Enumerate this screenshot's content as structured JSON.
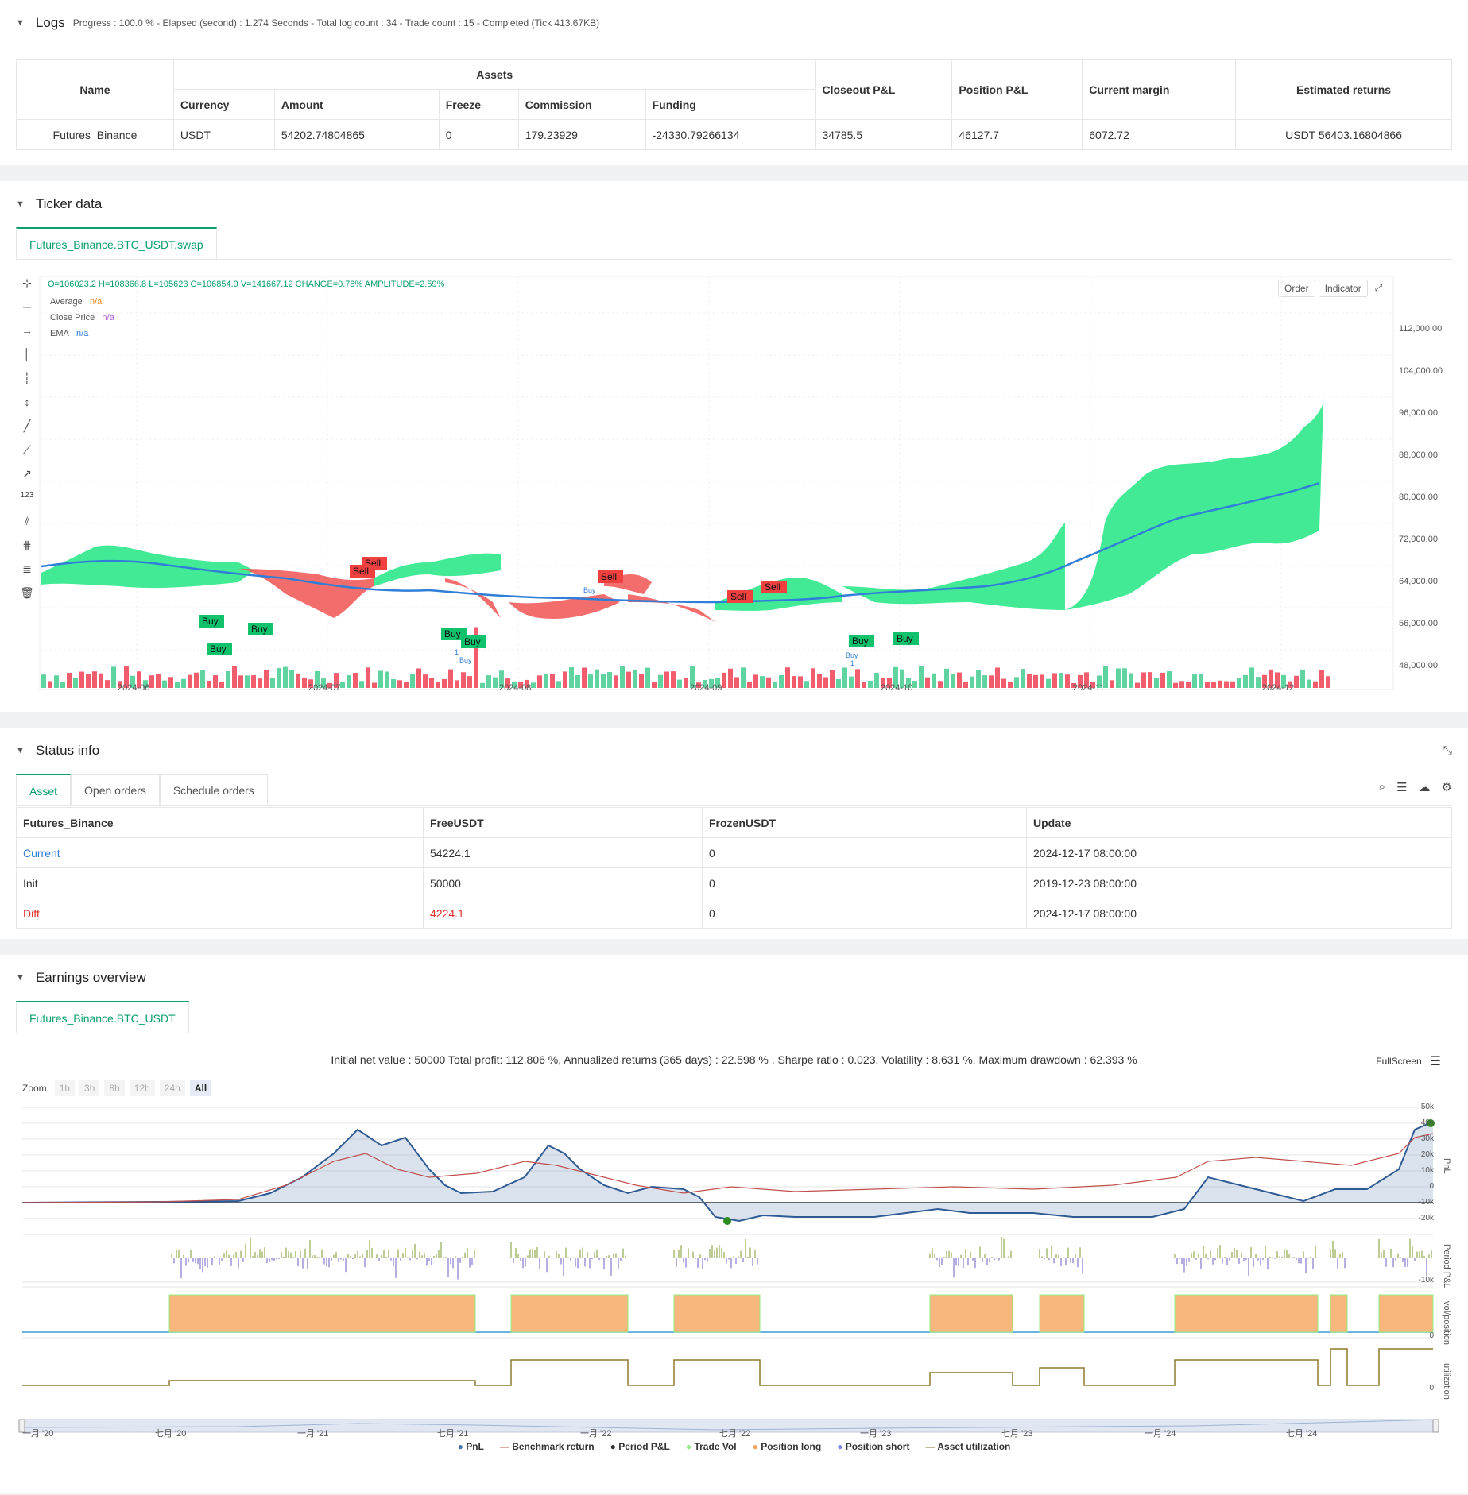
{
  "logs": {
    "title": "Logs",
    "meta": "Progress : 100.0 % - Elapsed (second) : 1.274  Seconds - Total log count : 34 - Trade count : 15 - Completed (Tick 413.67KB)",
    "table": {
      "name_header": "Name",
      "assets_header": "Assets",
      "sub_headers": [
        "Currency",
        "Amount",
        "Freeze",
        "Commission",
        "Funding"
      ],
      "right_headers": [
        "Closeout P&L",
        "Position P&L",
        "Current margin",
        "Estimated returns"
      ],
      "row": [
        "Futures_Binance",
        "USDT",
        "54202.74804865",
        "0",
        "179.23929",
        "-24330.79266134",
        "34785.5",
        "46127.7",
        "6072.72",
        "USDT 56403.16804866"
      ]
    }
  },
  "ticker": {
    "title": "Ticker data",
    "tab": "Futures_Binance.BTC_USDT.swap",
    "ohlc": "O=106023.2 H=108366.8 L=105623 C=106854.9 V=141667.12 CHANGE=0.78% AMPLITUDE=2.59%",
    "legend": [
      {
        "name": "Average",
        "value": "n/a",
        "color": "#f08a24"
      },
      {
        "name": "Close Price",
        "value": "n/a",
        "color": "#b05fd6"
      },
      {
        "name": "EMA",
        "value": "n/a",
        "color": "#2f7ed8"
      }
    ],
    "buttons": [
      "Order",
      "Indicator"
    ],
    "y_ticks": [
      "112,000.00",
      "104,000.00",
      "96,000.00",
      "88,000.00",
      "80,000.00",
      "72,000.00",
      "64,000.00",
      "56,000.00",
      "48,000.00"
    ],
    "x_ticks": [
      "2024-06",
      "2024-07",
      "2024-08",
      "2024-09",
      "2024-10",
      "2024-11",
      "2024-12"
    ],
    "signals": [
      "Sell",
      "Sell",
      "Sell",
      "Sell",
      "Sell",
      "Buy",
      "Buy",
      "Buy",
      "Buy",
      "Buy",
      "Buy",
      "Buy"
    ],
    "small_labels": [
      "Buy",
      "1",
      "Buy",
      "1",
      "Buy"
    ]
  },
  "status": {
    "title": "Status info",
    "tabs": [
      "Asset",
      "Open orders",
      "Schedule orders"
    ],
    "headers": [
      "Futures_Binance",
      "FreeUSDT",
      "FrozenUSDT",
      "Update"
    ],
    "rows": [
      [
        "Current",
        "54224.1",
        "0",
        "2024-12-17 08:00:00"
      ],
      [
        "Init",
        "50000",
        "0",
        "2019-12-23 08:00:00"
      ],
      [
        "Diff",
        "4224.1",
        "0",
        "2024-12-17 08:00:00"
      ]
    ]
  },
  "earnings": {
    "title": "Earnings overview",
    "tab": "Futures_Binance.BTC_USDT",
    "summary": "Initial net value : 50000 Total profit: 112.806 %, Annualized returns (365 days) : 22.598 % , Sharpe ratio : 0.023, Volatility : 8.631 %, Maximum drawdown : 62.393 %",
    "fullscreen": "FullScreen",
    "zoom_label": "Zoom",
    "zoom_options": [
      "1h",
      "3h",
      "8h",
      "12h",
      "24h",
      "All"
    ],
    "pnl_ticks": [
      "50k",
      "40k",
      "30k",
      "20k",
      "10k",
      "0",
      "-10k",
      "-20k"
    ],
    "axis_labels": [
      "PnL",
      "Period P&L",
      "vol/position",
      "utilization"
    ],
    "period_tick": "-10k",
    "vol_tick": "0",
    "util_tick": "0",
    "x_ticks": [
      "一月 '20",
      "七月 '20",
      "一月 '21",
      "七月 '21",
      "一月 '22",
      "七月 '22",
      "一月 '23",
      "七月 '23",
      "一月 '24",
      "七月 '24"
    ],
    "legend": [
      {
        "name": "PnL",
        "color": "#4572a7"
      },
      {
        "name": "Benchmark return",
        "color": "#c0504d"
      },
      {
        "name": "Period P&L",
        "color": "#333333"
      },
      {
        "name": "Trade Vol",
        "color": "#90ed7d"
      },
      {
        "name": "Position long",
        "color": "#f7a35c"
      },
      {
        "name": "Position short",
        "color": "#8085e9"
      },
      {
        "name": "Asset utilization",
        "color": "#8d7a2f"
      }
    ]
  }
}
